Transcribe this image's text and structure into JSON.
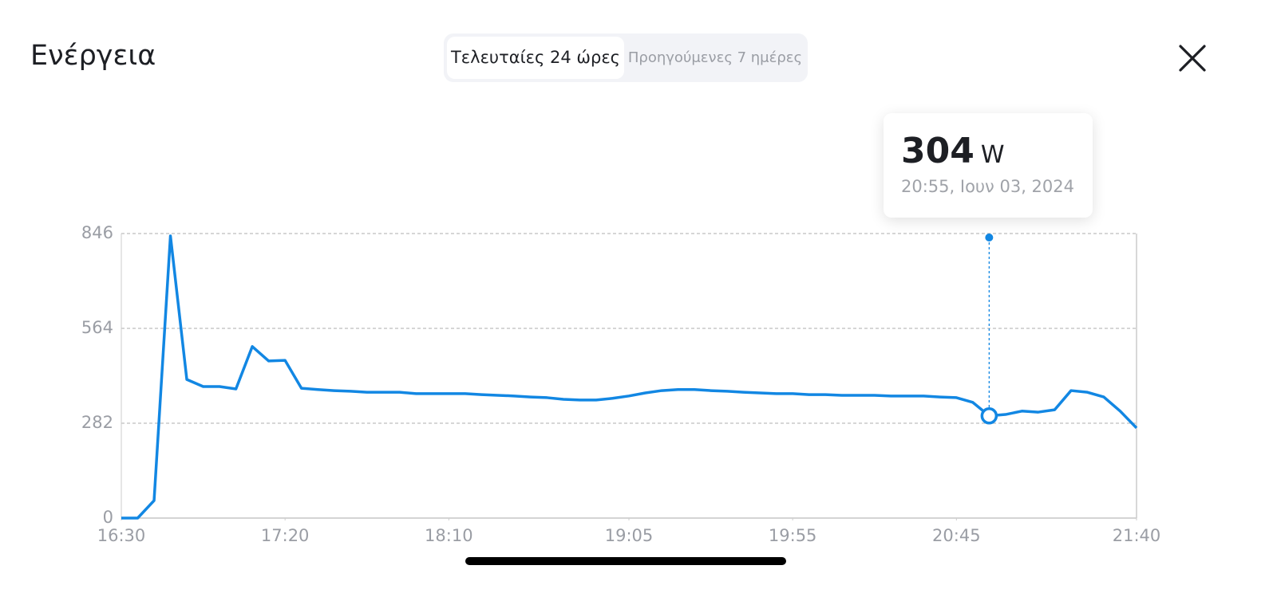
{
  "header": {
    "title": "Ενέργεια",
    "tabs": [
      "Τελευταίες 24 ώρες",
      "Προηγούμενες 7 ημέρες"
    ]
  },
  "chart_data": {
    "type": "line",
    "x": [
      "16:30",
      "16:35",
      "16:40",
      "16:45",
      "16:50",
      "16:55",
      "17:00",
      "17:05",
      "17:10",
      "17:15",
      "17:20",
      "17:25",
      "17:30",
      "17:35",
      "17:40",
      "17:45",
      "17:50",
      "17:55",
      "18:00",
      "18:05",
      "18:10",
      "18:15",
      "18:20",
      "18:25",
      "18:30",
      "18:35",
      "18:40",
      "18:45",
      "18:50",
      "18:55",
      "19:00",
      "19:05",
      "19:10",
      "19:15",
      "19:20",
      "19:25",
      "19:30",
      "19:35",
      "19:40",
      "19:45",
      "19:50",
      "19:55",
      "20:00",
      "20:05",
      "20:10",
      "20:15",
      "20:20",
      "20:25",
      "20:30",
      "20:35",
      "20:40",
      "20:45",
      "20:50",
      "20:55",
      "21:00",
      "21:05",
      "21:10",
      "21:15",
      "21:20",
      "21:25",
      "21:30",
      "21:35",
      "21:40"
    ],
    "series": [
      {
        "name": "Ενέργεια",
        "color": "#1287e3",
        "values": [
          0,
          0,
          52,
          839,
          412,
          391,
          391,
          384,
          510,
          467,
          469,
          386,
          382,
          379,
          377,
          374,
          374,
          374,
          370,
          370,
          370,
          370,
          367,
          365,
          363,
          360,
          358,
          353,
          351,
          351,
          356,
          363,
          372,
          379,
          382,
          382,
          379,
          377,
          374,
          372,
          370,
          370,
          367,
          367,
          365,
          365,
          365,
          363,
          363,
          363,
          360,
          358,
          344,
          304,
          308,
          318,
          315,
          322,
          379,
          374,
          360,
          318,
          268
        ]
      }
    ],
    "xlim": [
      "16:30",
      "21:40"
    ],
    "xticks": [
      "16:30",
      "17:20",
      "18:10",
      "19:05",
      "19:55",
      "20:45",
      "21:40"
    ],
    "ylim": [
      0,
      846
    ],
    "yticks": [
      0,
      282,
      564,
      846
    ],
    "grid": true,
    "tooltip": {
      "value": "304",
      "unit": "W",
      "time": "20:55, Ιουν 03, 2024"
    }
  }
}
